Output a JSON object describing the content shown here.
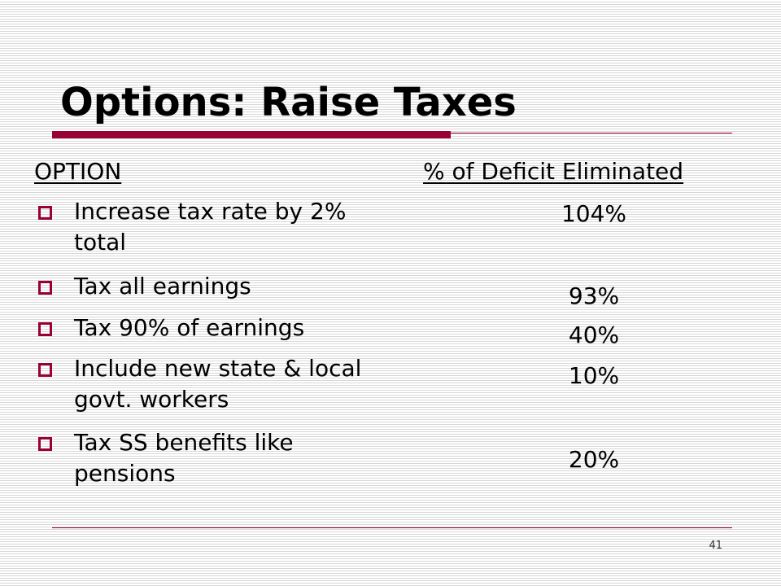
{
  "slide": {
    "title": "Options:  Raise Taxes",
    "page_number": "41",
    "accent_color": "#990033"
  },
  "table": {
    "option_header": "OPTION",
    "value_header": "% of Deficit Eliminated",
    "bullet_icon": "hollow-square-bullet-icon",
    "rows": [
      {
        "option": "Increase tax rate by 2% total",
        "value": "104%"
      },
      {
        "option": "Tax all earnings",
        "value": "93%"
      },
      {
        "option": "Tax 90% of earnings",
        "value": "40%"
      },
      {
        "option": "Include new state & local govt. workers",
        "value": "10%"
      },
      {
        "option": "Tax SS benefits like pensions",
        "value": "20%"
      }
    ]
  }
}
